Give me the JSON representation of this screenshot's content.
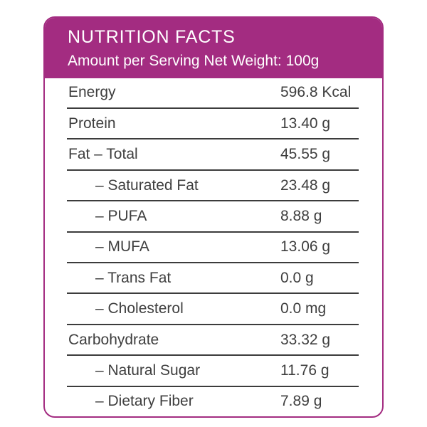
{
  "header": {
    "title": "NUTRITION FACTS",
    "subtitle": "Amount per Serving Net Weight: 100g"
  },
  "colors": {
    "brand": "#A32C81",
    "header_text": "#FFFFFF",
    "text": "#3E3E3E",
    "divider": "#3C3C3C",
    "background": "#FFFFFF"
  },
  "table": {
    "rows": [
      {
        "label": "Energy",
        "value": "596.8 Kcal",
        "indent": false
      },
      {
        "label": "Protein",
        "value": "13.40 g",
        "indent": false
      },
      {
        "label": "Fat – Total",
        "value": "45.55 g",
        "indent": false
      },
      {
        "label": "– Saturated Fat",
        "value": "23.48 g",
        "indent": true
      },
      {
        "label": "– PUFA",
        "value": "8.88 g",
        "indent": true
      },
      {
        "label": "– MUFA",
        "value": "13.06 g",
        "indent": true
      },
      {
        "label": "– Trans Fat",
        "value": "0.0 g",
        "indent": true
      },
      {
        "label": "– Cholesterol",
        "value": "0.0 mg",
        "indent": true
      },
      {
        "label": "Carbohydrate",
        "value": "33.32 g",
        "indent": false
      },
      {
        "label": "– Natural Sugar",
        "value": "11.76 g",
        "indent": true
      },
      {
        "label": "– Dietary Fiber",
        "value": "7.89 g",
        "indent": true
      }
    ]
  }
}
